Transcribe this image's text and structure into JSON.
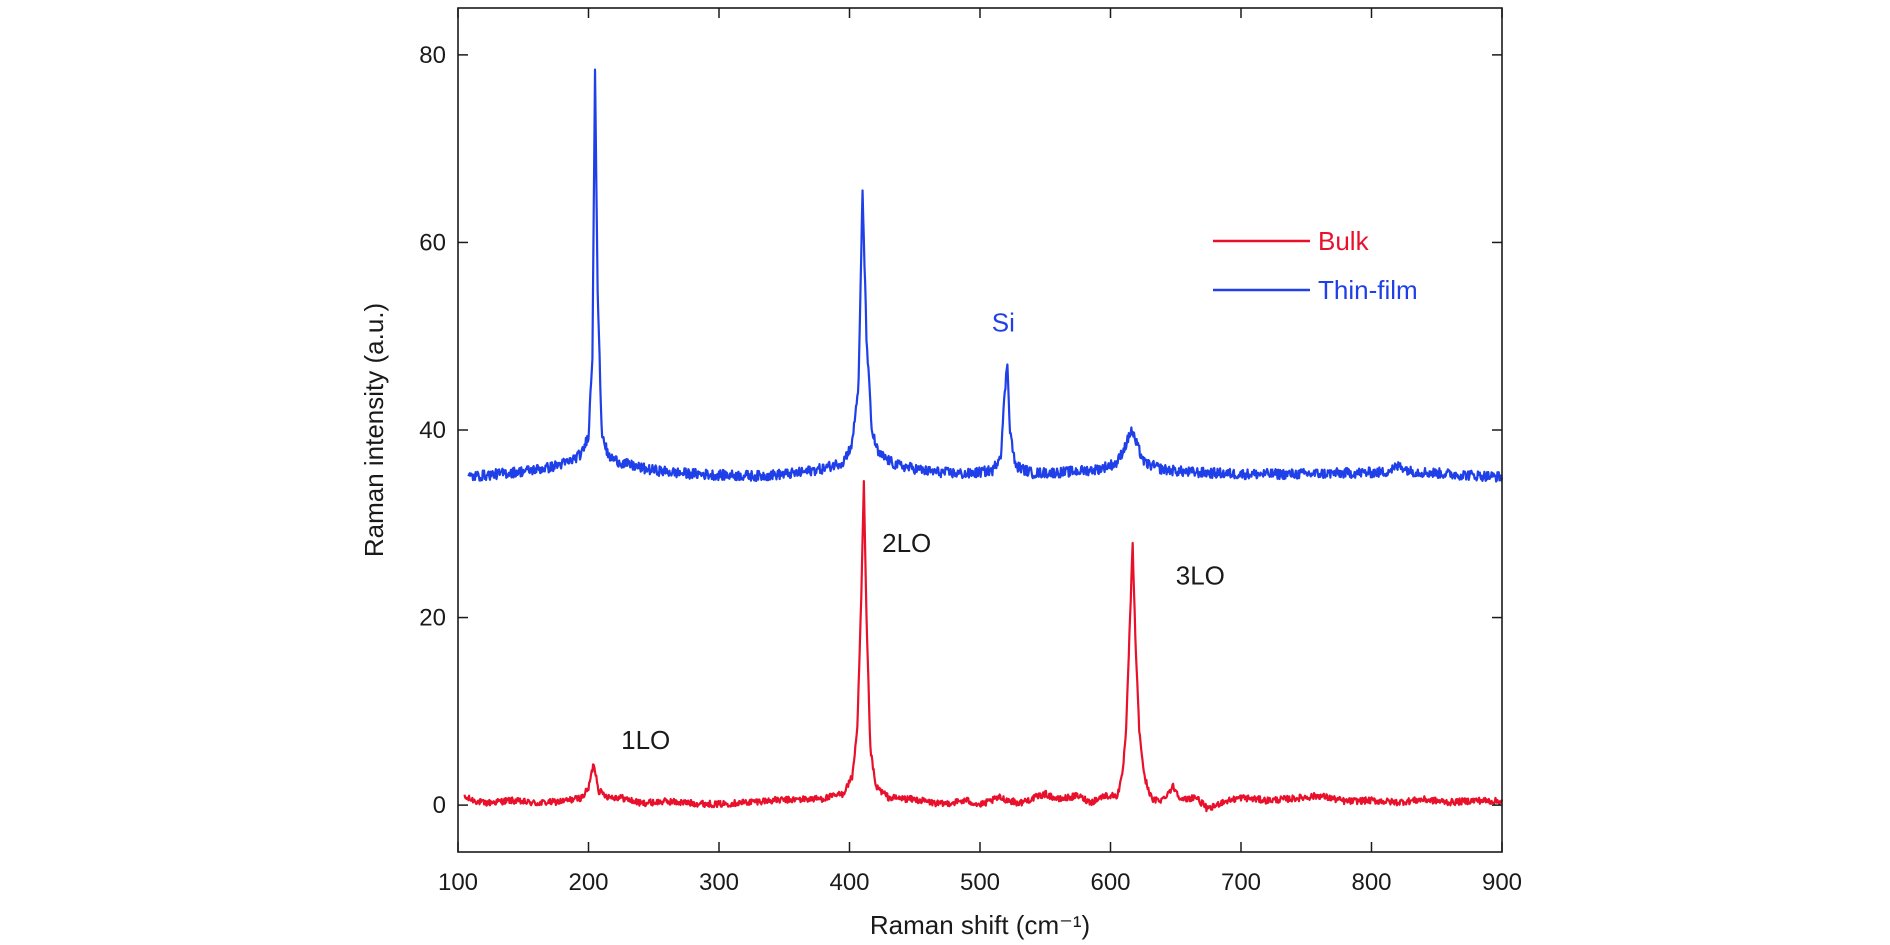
{
  "chart_data": {
    "type": "line",
    "title": "",
    "xlabel": "Raman shift (cm⁻¹)",
    "ylabel": "Raman intensity (a.u.)",
    "xlim": [
      100,
      900
    ],
    "ylim": [
      -5,
      85
    ],
    "xticks": [
      100,
      200,
      300,
      400,
      500,
      600,
      700,
      800,
      900
    ],
    "yticks": [
      0,
      20,
      40,
      60,
      80
    ],
    "grid": false,
    "legend_position": "top-right",
    "series": [
      {
        "name": "Bulk",
        "color": "#e8102a",
        "baseline": 0.2,
        "points": [
          [
            105,
            0.8
          ],
          [
            120,
            0.2
          ],
          [
            140,
            0.5
          ],
          [
            160,
            0.2
          ],
          [
            180,
            0.4
          ],
          [
            195,
            0.8
          ],
          [
            200,
            1.8
          ],
          [
            204,
            4.5
          ],
          [
            208,
            1.5
          ],
          [
            215,
            0.9
          ],
          [
            225,
            0.8
          ],
          [
            240,
            0.2
          ],
          [
            260,
            0.4
          ],
          [
            280,
            0.2
          ],
          [
            300,
            0.1
          ],
          [
            320,
            0.3
          ],
          [
            340,
            0.5
          ],
          [
            360,
            0.6
          ],
          [
            380,
            0.7
          ],
          [
            395,
            1.2
          ],
          [
            402,
            3.0
          ],
          [
            406,
            8.0
          ],
          [
            409,
            22.0
          ],
          [
            411,
            34.2
          ],
          [
            413,
            20.0
          ],
          [
            416,
            6.0
          ],
          [
            420,
            2.0
          ],
          [
            430,
            0.8
          ],
          [
            450,
            0.6
          ],
          [
            470,
            0.1
          ],
          [
            490,
            0.5
          ],
          [
            500,
            0.0
          ],
          [
            515,
            0.8
          ],
          [
            530,
            0.2
          ],
          [
            550,
            1.2
          ],
          [
            560,
            0.6
          ],
          [
            575,
            1.0
          ],
          [
            585,
            0.3
          ],
          [
            595,
            1.0
          ],
          [
            605,
            1.0
          ],
          [
            609,
            3.0
          ],
          [
            612,
            8.0
          ],
          [
            615,
            20.0
          ],
          [
            617,
            27.8
          ],
          [
            619,
            18.0
          ],
          [
            622,
            8.0
          ],
          [
            626,
            3.0
          ],
          [
            632,
            0.5
          ],
          [
            640,
            0.6
          ],
          [
            648,
            2.0
          ],
          [
            655,
            0.5
          ],
          [
            665,
            0.9
          ],
          [
            675,
            -0.5
          ],
          [
            685,
            0.3
          ],
          [
            700,
            0.8
          ],
          [
            720,
            0.5
          ],
          [
            740,
            0.7
          ],
          [
            760,
            1.0
          ],
          [
            780,
            0.4
          ],
          [
            800,
            0.5
          ],
          [
            820,
            0.3
          ],
          [
            840,
            0.6
          ],
          [
            860,
            0.3
          ],
          [
            880,
            0.5
          ],
          [
            900,
            0.4
          ]
        ]
      },
      {
        "name": "Thin-film",
        "color": "#1f3fe8",
        "baseline": 35.3,
        "points": [
          [
            108,
            35.0
          ],
          [
            130,
            35.3
          ],
          [
            150,
            35.6
          ],
          [
            170,
            36.0
          ],
          [
            185,
            36.6
          ],
          [
            195,
            37.5
          ],
          [
            200,
            39.5
          ],
          [
            203,
            48.0
          ],
          [
            205,
            78.8
          ],
          [
            207,
            55.0
          ],
          [
            210,
            40.0
          ],
          [
            215,
            37.2
          ],
          [
            225,
            36.5
          ],
          [
            245,
            35.8
          ],
          [
            270,
            35.4
          ],
          [
            300,
            35.2
          ],
          [
            330,
            35.1
          ],
          [
            360,
            35.4
          ],
          [
            380,
            35.9
          ],
          [
            395,
            36.6
          ],
          [
            402,
            38.5
          ],
          [
            407,
            45.0
          ],
          [
            410,
            65.5
          ],
          [
            413,
            50.0
          ],
          [
            417,
            40.0
          ],
          [
            422,
            37.5
          ],
          [
            435,
            36.3
          ],
          [
            460,
            35.6
          ],
          [
            490,
            35.3
          ],
          [
            510,
            35.7
          ],
          [
            516,
            37.5
          ],
          [
            519,
            44.0
          ],
          [
            521,
            47.2
          ],
          [
            523,
            40.0
          ],
          [
            527,
            36.2
          ],
          [
            540,
            35.4
          ],
          [
            565,
            35.5
          ],
          [
            590,
            35.8
          ],
          [
            605,
            36.5
          ],
          [
            612,
            38.5
          ],
          [
            616,
            40.0
          ],
          [
            620,
            38.5
          ],
          [
            626,
            36.5
          ],
          [
            640,
            35.8
          ],
          [
            660,
            35.5
          ],
          [
            700,
            35.3
          ],
          [
            740,
            35.3
          ],
          [
            780,
            35.4
          ],
          [
            810,
            35.5
          ],
          [
            822,
            36.2
          ],
          [
            830,
            35.6
          ],
          [
            860,
            35.3
          ],
          [
            900,
            35.0
          ]
        ]
      }
    ],
    "annotations": [
      {
        "text": "1LO",
        "x": 225,
        "y": 6,
        "color": "#1a1a1a"
      },
      {
        "text": "2LO",
        "x": 425,
        "y": 27,
        "color": "#1a1a1a"
      },
      {
        "text": "3LO",
        "x": 650,
        "y": 23.5,
        "color": "#1a1a1a"
      },
      {
        "text": "Si",
        "x": 509,
        "y": 50.5,
        "color": "#1f3fe8"
      }
    ]
  }
}
